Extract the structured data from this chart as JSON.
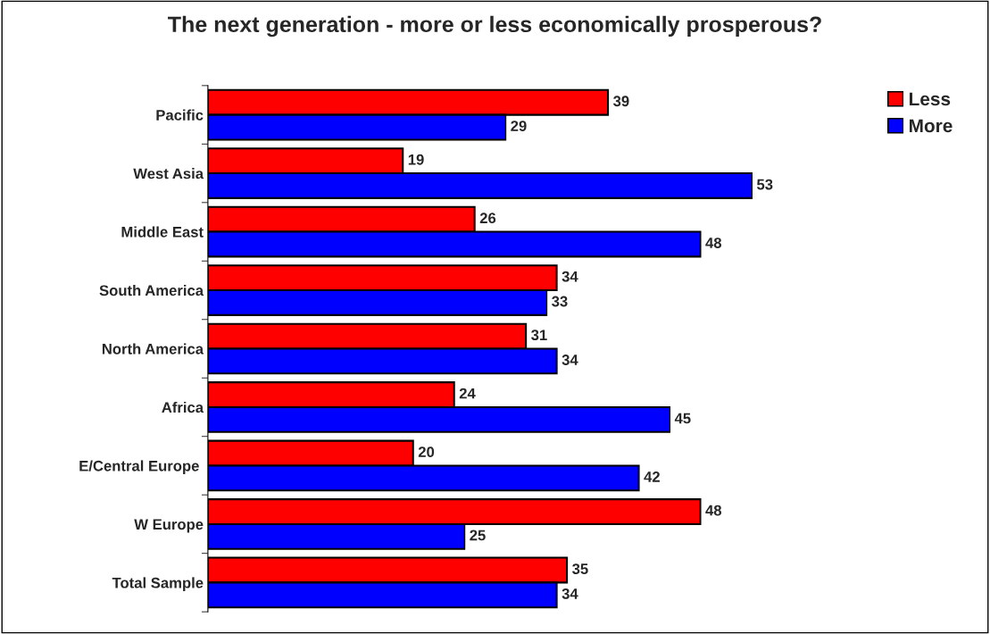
{
  "chart_data": {
    "type": "bar",
    "orientation": "horizontal",
    "title": "The next generation - more or less economically prosperous?",
    "categories": [
      "Pacific",
      "West Asia",
      "Middle East",
      "South America",
      "North America",
      "Africa",
      "E/Central Europe ",
      "W Europe",
      "Total Sample"
    ],
    "series": [
      {
        "name": "Less",
        "color": "#ff0000",
        "values": [
          39,
          19,
          26,
          34,
          31,
          24,
          20,
          48,
          35
        ]
      },
      {
        "name": "More",
        "color": "#0000ff",
        "values": [
          29,
          53,
          48,
          33,
          34,
          45,
          42,
          25,
          34
        ]
      }
    ],
    "data_labels": true,
    "legend": "top right",
    "grid": false,
    "tick_labels": "y"
  }
}
